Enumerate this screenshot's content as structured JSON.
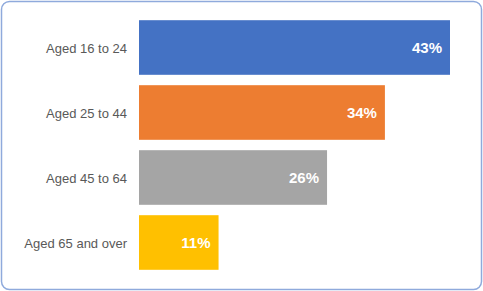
{
  "chart_data": {
    "type": "bar",
    "orientation": "horizontal",
    "categories": [
      "Aged 16 to 24",
      "Aged 25 to 44",
      "Aged 45 to 64",
      "Aged 65 and over"
    ],
    "values": [
      43,
      34,
      26,
      11
    ],
    "value_labels": [
      "43%",
      "34%",
      "26%",
      "11%"
    ],
    "colors": [
      "#4472c4",
      "#ed7d31",
      "#a5a5a5",
      "#ffc000"
    ],
    "xlim": [
      0,
      43
    ],
    "data_labels": true,
    "tick_labels": "y",
    "grid": false
  }
}
